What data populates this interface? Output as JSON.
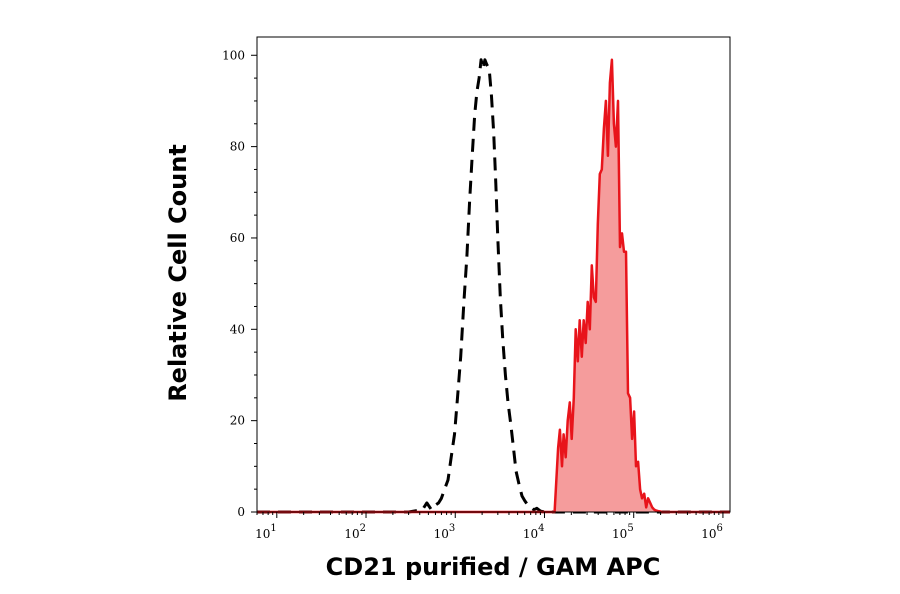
{
  "chart_data": {
    "type": "area",
    "title": "",
    "xlabel": "CD21 purified / GAM APC",
    "ylabel": "Relative Cell Count",
    "x_scale": "log",
    "xlim": [
      6,
      1200000
    ],
    "ylim": [
      0,
      104
    ],
    "x_ticks": [
      {
        "value": 10,
        "base": "10",
        "exp": "1"
      },
      {
        "value": 100,
        "base": "10",
        "exp": "2"
      },
      {
        "value": 1000,
        "base": "10",
        "exp": "3"
      },
      {
        "value": 10000,
        "base": "10",
        "exp": "4"
      },
      {
        "value": 100000,
        "base": "10",
        "exp": "5"
      },
      {
        "value": 1000000,
        "base": "10",
        "exp": "6"
      }
    ],
    "y_ticks": [
      0,
      20,
      40,
      60,
      80,
      100
    ],
    "y_tick_labels": [
      "0",
      "20",
      "40",
      "60",
      "80",
      "100"
    ],
    "grid": false,
    "legend": "none",
    "series": [
      {
        "style": "dashed",
        "color": "#000000",
        "fill": "none",
        "x": [
          6,
          300,
          430,
          480,
          540,
          600,
          650,
          700,
          760,
          830,
          900,
          980,
          1060,
          1150,
          1250,
          1350,
          1450,
          1550,
          1650,
          1750,
          1850,
          1950,
          2050,
          2150,
          2250,
          2400,
          2550,
          2700,
          2850,
          3000,
          3200,
          3400,
          3650,
          3900,
          4200,
          4500,
          4800,
          5200,
          5600,
          6000,
          6500,
          7000,
          7600,
          8200,
          9000,
          10000,
          1200000
        ],
        "y": [
          0,
          0,
          0.5,
          2,
          0.5,
          1.5,
          2,
          3,
          5,
          7,
          12,
          17,
          25,
          34,
          46,
          56,
          68,
          78,
          87,
          92,
          95,
          99,
          97,
          99,
          98,
          97,
          91,
          83,
          72,
          60,
          47,
          38,
          30,
          24,
          19,
          14,
          9,
          6,
          3.5,
          2.5,
          1.5,
          1,
          0.5,
          0.8,
          0.2,
          0,
          0
        ]
      },
      {
        "style": "solid",
        "color": "#e8141b",
        "fill": "#f59c9c",
        "x": [
          6,
          13000,
          14200,
          14900,
          15700,
          16400,
          17300,
          18200,
          19200,
          20200,
          21300,
          22400,
          23600,
          24800,
          26200,
          27500,
          29000,
          30500,
          32200,
          33900,
          35700,
          37600,
          39600,
          41700,
          43900,
          46300,
          48800,
          51400,
          54100,
          57000,
          60000,
          63200,
          66600,
          70200,
          73900,
          77900,
          82000,
          86400,
          91000,
          95900,
          101000,
          106000,
          112000,
          118000,
          124000,
          131000,
          138000,
          145000,
          153000,
          161000,
          170000,
          179000,
          188000,
          198000,
          209000,
          220000,
          232000,
          244000,
          257000,
          271000,
          285000,
          300000,
          1200000
        ],
        "y": [
          0,
          0,
          14,
          18,
          10,
          17,
          12,
          20,
          24,
          16,
          25,
          40,
          33,
          42,
          34,
          42,
          37,
          46,
          40,
          54,
          47,
          46,
          63,
          74,
          75,
          84,
          90,
          78,
          94,
          99,
          85,
          80,
          90,
          58,
          61,
          57,
          57,
          26,
          25,
          16,
          22,
          10,
          11,
          5,
          3,
          4,
          1,
          3,
          2,
          1,
          0.5,
          0.3,
          0.2,
          0.1,
          0,
          0,
          0,
          0,
          0,
          0,
          0,
          0,
          0
        ]
      }
    ]
  }
}
